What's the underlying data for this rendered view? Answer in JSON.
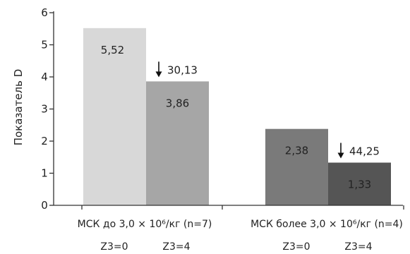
{
  "chart_data": {
    "type": "bar",
    "ylabel": "Показатель D",
    "ylim": [
      0,
      6
    ],
    "yticks": [
      0,
      1,
      2,
      3,
      4,
      5,
      6
    ],
    "grid": false,
    "groups": [
      {
        "label": "МСК до 3,0 × 10⁶/кг (n=7)",
        "bars": [
          {
            "sub_label": "Z3=0",
            "value": 5.52,
            "value_label": "5,52",
            "color": "#d8d8d8"
          },
          {
            "sub_label": "Z3=4",
            "value": 3.86,
            "value_label": "3,86",
            "color": "#a6a6a6"
          }
        ],
        "change_label": "30,13"
      },
      {
        "label": "МСК более 3,0 × 10⁶/кг (n=4)",
        "bars": [
          {
            "sub_label": "Z3=0",
            "value": 2.38,
            "value_label": "2,38",
            "color": "#7a7a7a"
          },
          {
            "sub_label": "Z3=4",
            "value": 1.33,
            "value_label": "1,33",
            "color": "#555555"
          }
        ],
        "change_label": "44,25"
      }
    ],
    "colors": {
      "axis": "#333333",
      "text_dark": "#222222",
      "text_light": "#ffffff"
    }
  }
}
